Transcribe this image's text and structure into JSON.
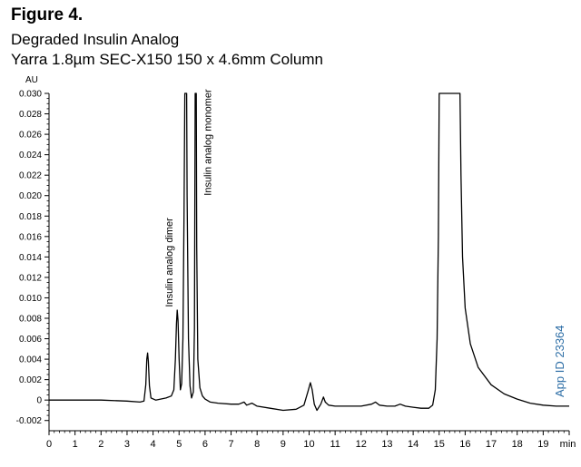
{
  "header": {
    "figure_label": "Figure 4.",
    "subtitle": "Degraded Insulin Analog",
    "column_info": "Yarra 1.8µm SEC-X150 150 x 4.6mm Column"
  },
  "app_id": "App ID 23364",
  "colors": {
    "trace": "#000000",
    "axis": "#000000",
    "app_id": "#2d6ea6",
    "background": "#ffffff"
  },
  "chart_data": {
    "type": "line",
    "title": "Degraded Insulin Analog",
    "xlabel": "min",
    "ylabel": "AU",
    "xlim": [
      0,
      20
    ],
    "ylim": [
      -0.003,
      0.03
    ],
    "xticks": [
      0,
      1,
      2,
      3,
      4,
      5,
      6,
      7,
      8,
      9,
      10,
      11,
      12,
      13,
      14,
      15,
      16,
      17,
      18,
      19
    ],
    "xtick_labels": [
      "0",
      "1",
      "2",
      "3",
      "4",
      "5",
      "6",
      "7",
      "8",
      "9",
      "10",
      "11",
      "12",
      "13",
      "14",
      "15",
      "16",
      "17",
      "18",
      "19"
    ],
    "yticks": [
      -0.002,
      0,
      0.002,
      0.004,
      0.006,
      0.008,
      0.01,
      0.012,
      0.014,
      0.016,
      0.018,
      0.02,
      0.022,
      0.024,
      0.026,
      0.028,
      0.03
    ],
    "ytick_labels": [
      "-0.002",
      "0",
      "0.002",
      "0.004",
      "0.006",
      "0.008",
      "0.010",
      "0.012",
      "0.014",
      "0.016",
      "0.018",
      "0.020",
      "0.022",
      "0.024",
      "0.026",
      "0.028",
      "0.030"
    ],
    "grid": false,
    "annotations": [
      {
        "text": "Insulin analog dimer",
        "x": 4.92,
        "y": 0.0091
      },
      {
        "text": "Insulin analog monomer",
        "x": 5.6,
        "y": 0.02
      }
    ],
    "series": [
      {
        "points": [
          [
            0,
            0.0
          ],
          [
            1,
            0.0
          ],
          [
            2,
            0.0
          ],
          [
            3,
            -0.0001
          ],
          [
            3.5,
            -0.0002
          ],
          [
            3.65,
            -0.0001
          ],
          [
            3.72,
            0.0015
          ],
          [
            3.76,
            0.004
          ],
          [
            3.79,
            0.0046
          ],
          [
            3.82,
            0.0038
          ],
          [
            3.86,
            0.0014
          ],
          [
            3.92,
            0.0002
          ],
          [
            4.1,
            0.0
          ],
          [
            4.5,
            0.0002
          ],
          [
            4.7,
            0.0004
          ],
          [
            4.8,
            0.001
          ],
          [
            4.86,
            0.004
          ],
          [
            4.9,
            0.0075
          ],
          [
            4.93,
            0.0088
          ],
          [
            4.96,
            0.0078
          ],
          [
            5.0,
            0.004
          ],
          [
            5.05,
            0.001
          ],
          [
            5.1,
            0.0016
          ],
          [
            5.15,
            0.006
          ],
          [
            5.19,
            0.018
          ],
          [
            5.22,
            0.03
          ],
          [
            5.29,
            0.03
          ],
          [
            5.31,
            0.02
          ],
          [
            5.36,
            0.006
          ],
          [
            5.42,
            0.0014
          ],
          [
            5.48,
            0.0002
          ],
          [
            5.55,
            0.0008
          ],
          [
            5.59,
            0.007
          ],
          [
            5.62,
            0.03
          ],
          [
            5.66,
            0.03
          ],
          [
            5.68,
            0.015
          ],
          [
            5.72,
            0.004
          ],
          [
            5.8,
            0.0012
          ],
          [
            5.9,
            0.0004
          ],
          [
            6.0,
            0.0001
          ],
          [
            6.2,
            -0.0002
          ],
          [
            6.5,
            -0.0003
          ],
          [
            7.0,
            -0.0004
          ],
          [
            7.3,
            -0.0004
          ],
          [
            7.5,
            -0.0002
          ],
          [
            7.6,
            -0.0005
          ],
          [
            7.8,
            -0.0003
          ],
          [
            8.0,
            -0.0006
          ],
          [
            8.5,
            -0.0008
          ],
          [
            9.0,
            -0.001
          ],
          [
            9.5,
            -0.0009
          ],
          [
            9.8,
            -0.0005
          ],
          [
            9.95,
            0.0008
          ],
          [
            10.05,
            0.0017
          ],
          [
            10.12,
            0.001
          ],
          [
            10.2,
            -0.0004
          ],
          [
            10.3,
            -0.001
          ],
          [
            10.45,
            -0.0004
          ],
          [
            10.55,
            0.0003
          ],
          [
            10.62,
            -0.0002
          ],
          [
            10.75,
            -0.0005
          ],
          [
            11.0,
            -0.0006
          ],
          [
            11.5,
            -0.0006
          ],
          [
            12.0,
            -0.0006
          ],
          [
            12.4,
            -0.0004
          ],
          [
            12.55,
            -0.0002
          ],
          [
            12.7,
            -0.0005
          ],
          [
            13.0,
            -0.0006
          ],
          [
            13.3,
            -0.0006
          ],
          [
            13.5,
            -0.0004
          ],
          [
            13.7,
            -0.0006
          ],
          [
            14.0,
            -0.0007
          ],
          [
            14.3,
            -0.0008
          ],
          [
            14.6,
            -0.0008
          ],
          [
            14.75,
            -0.0005
          ],
          [
            14.85,
            0.001
          ],
          [
            14.92,
            0.006
          ],
          [
            14.97,
            0.016
          ],
          [
            15.0,
            0.03
          ],
          [
            15.8,
            0.03
          ],
          [
            15.84,
            0.022
          ],
          [
            15.9,
            0.014
          ],
          [
            16.0,
            0.009
          ],
          [
            16.2,
            0.0055
          ],
          [
            16.5,
            0.0032
          ],
          [
            17.0,
            0.0015
          ],
          [
            17.5,
            0.0006
          ],
          [
            18.0,
            0.0001
          ],
          [
            18.5,
            -0.0003
          ],
          [
            19.0,
            -0.0005
          ],
          [
            19.5,
            -0.0006
          ],
          [
            20.0,
            -0.0006
          ]
        ]
      }
    ]
  }
}
